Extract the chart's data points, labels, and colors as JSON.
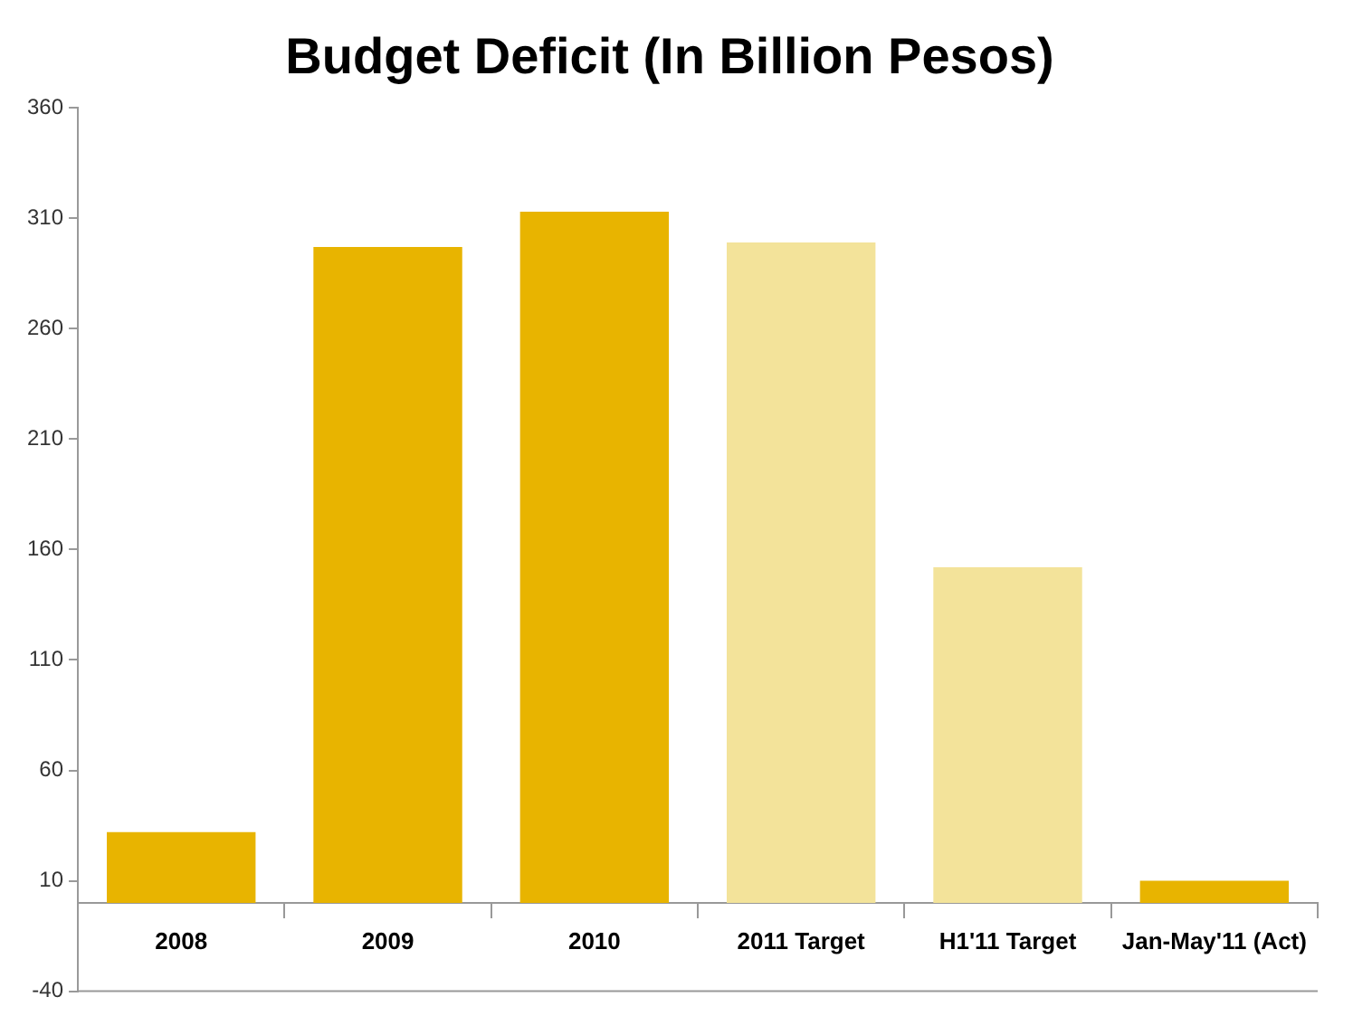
{
  "chart_data": {
    "type": "bar",
    "title": "Budget Deficit (In Billion Pesos)",
    "categories": [
      "2008",
      "2009",
      "2010",
      "2011 Target",
      "H1'11 Target",
      "Jan-May'11 (Act)"
    ],
    "values": [
      32,
      297,
      313,
      299,
      152,
      10
    ],
    "colors": [
      "#e8b400",
      "#e8b400",
      "#e8b400",
      "#f3e39a",
      "#f3e39a",
      "#e8b400"
    ],
    "ylim": [
      -40,
      360
    ],
    "yticks": [
      -40,
      10,
      60,
      110,
      160,
      210,
      260,
      310,
      360
    ],
    "grid": false,
    "legend": false
  }
}
